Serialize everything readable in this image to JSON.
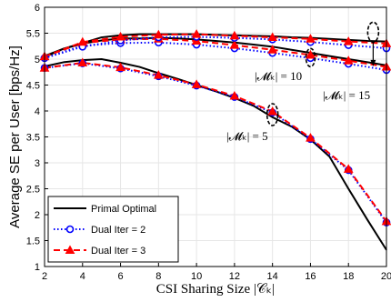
{
  "chart_data": {
    "type": "line",
    "xlabel": "CSI Sharing Size |𝒞ₖ|",
    "ylabel": "Average SE per User [bps/Hz]",
    "xlim": [
      2,
      20
    ],
    "ylim": [
      1,
      6
    ],
    "xticks": [
      2,
      4,
      6,
      8,
      10,
      12,
      14,
      16,
      18,
      20
    ],
    "yticks": [
      1,
      1.5,
      2,
      2.5,
      3,
      3.5,
      4,
      4.5,
      5,
      5.5,
      6
    ],
    "xtick_labels": [
      "2",
      "4",
      "6",
      "8",
      "10",
      "12",
      "14",
      "16",
      "18",
      "20"
    ],
    "ytick_labels": [
      "1",
      "1.5",
      "2",
      "2.5",
      "3",
      "3.5",
      "4",
      "4.5",
      "5",
      "5.5",
      "6"
    ],
    "grid": true,
    "legend_position": "bottom-left",
    "groups": [
      {
        "annotation": "|𝓜ₖ| = 5",
        "series": [
          {
            "name": "Primal Optimal",
            "x": [
              2,
              3,
              4,
              5,
              6,
              7,
              8,
              9,
              10,
              11,
              12,
              13,
              14,
              15,
              16,
              17,
              18,
              19,
              20
            ],
            "y": [
              4.86,
              4.94,
              4.98,
              5.0,
              4.93,
              4.85,
              4.73,
              4.62,
              4.5,
              4.38,
              4.25,
              4.1,
              3.88,
              3.7,
              3.45,
              3.12,
              2.5,
              1.9,
              1.32
            ]
          },
          {
            "name": "Dual Iter = 2",
            "x": [
              2,
              4,
              6,
              8,
              10,
              12,
              14,
              16,
              18,
              20
            ],
            "y": [
              4.83,
              4.92,
              4.82,
              4.67,
              4.49,
              4.27,
              3.97,
              3.46,
              2.86,
              1.85
            ]
          },
          {
            "name": "Dual Iter = 3",
            "x": [
              2,
              4,
              6,
              8,
              10,
              12,
              14,
              16,
              18,
              20
            ],
            "y": [
              4.83,
              4.93,
              4.84,
              4.69,
              4.51,
              4.29,
              3.99,
              3.48,
              2.88,
              1.87
            ]
          }
        ]
      },
      {
        "annotation": "|𝓜ₖ| = 10",
        "series": [
          {
            "name": "Primal Optimal",
            "x": [
              2,
              3,
              4,
              5,
              6,
              7,
              8,
              9,
              10,
              11,
              12,
              13,
              14,
              15,
              16,
              17,
              18,
              19,
              20
            ],
            "y": [
              5.06,
              5.2,
              5.3,
              5.36,
              5.4,
              5.4,
              5.41,
              5.4,
              5.38,
              5.35,
              5.32,
              5.28,
              5.24,
              5.18,
              5.12,
              5.06,
              5.0,
              4.94,
              4.88
            ]
          },
          {
            "name": "Dual Iter = 2",
            "x": [
              2,
              4,
              6,
              8,
              10,
              12,
              14,
              16,
              18,
              20
            ],
            "y": [
              5.02,
              5.26,
              5.31,
              5.32,
              5.28,
              5.21,
              5.12,
              5.02,
              4.91,
              4.79
            ]
          },
          {
            "name": "Dual Iter = 3",
            "x": [
              2,
              4,
              6,
              8,
              10,
              12,
              14,
              16,
              18,
              20
            ],
            "y": [
              5.05,
              5.31,
              5.38,
              5.39,
              5.35,
              5.27,
              5.18,
              5.08,
              4.97,
              4.85
            ]
          }
        ]
      },
      {
        "annotation": "|𝓜ₖ| = 15",
        "series": [
          {
            "name": "Primal Optimal",
            "x": [
              2,
              3,
              4,
              5,
              6,
              7,
              8,
              9,
              10,
              11,
              12,
              13,
              14,
              15,
              16,
              17,
              18,
              19,
              20
            ],
            "y": [
              5.04,
              5.2,
              5.31,
              5.42,
              5.46,
              5.48,
              5.48,
              5.48,
              5.48,
              5.47,
              5.46,
              5.45,
              5.44,
              5.42,
              5.41,
              5.39,
              5.37,
              5.35,
              5.34
            ]
          },
          {
            "name": "Dual Iter = 2",
            "x": [
              2,
              4,
              6,
              8,
              10,
              12,
              14,
              16,
              18,
              20
            ],
            "y": [
              5.02,
              5.24,
              5.36,
              5.42,
              5.43,
              5.41,
              5.38,
              5.33,
              5.27,
              5.21
            ]
          },
          {
            "name": "Dual Iter = 3",
            "x": [
              2,
              4,
              6,
              8,
              10,
              12,
              14,
              16,
              18,
              20
            ],
            "y": [
              5.05,
              5.33,
              5.43,
              5.47,
              5.48,
              5.45,
              5.42,
              5.39,
              5.34,
              5.3
            ]
          }
        ]
      }
    ],
    "legend": [
      {
        "name": "Primal Optimal",
        "color": "#000000",
        "dash": "solid",
        "marker": "none"
      },
      {
        "name": "Dual Iter = 2",
        "color": "#0000ff",
        "dash": "dotted",
        "marker": "circle"
      },
      {
        "name": "Dual Iter = 3",
        "color": "#ff0000",
        "dash": "dashed",
        "marker": "triangle"
      }
    ],
    "annotations": [
      {
        "text": "|𝓜ₖ| = 5",
        "ellipse_at": [
          14,
          3.93
        ],
        "label_anchor": [
          12,
          3.5
        ]
      },
      {
        "text": "|𝓜ₖ| = 10",
        "ellipse_at": [
          16,
          5.03
        ],
        "label_anchor": [
          15.5,
          4.8
        ]
      },
      {
        "text": "|𝓜ₖ| = 15",
        "ellipse_at": [
          19.3,
          5.52
        ],
        "arrow_to": [
          19.3,
          4.88
        ],
        "label_anchor": [
          18.5,
          4.25
        ]
      }
    ]
  }
}
